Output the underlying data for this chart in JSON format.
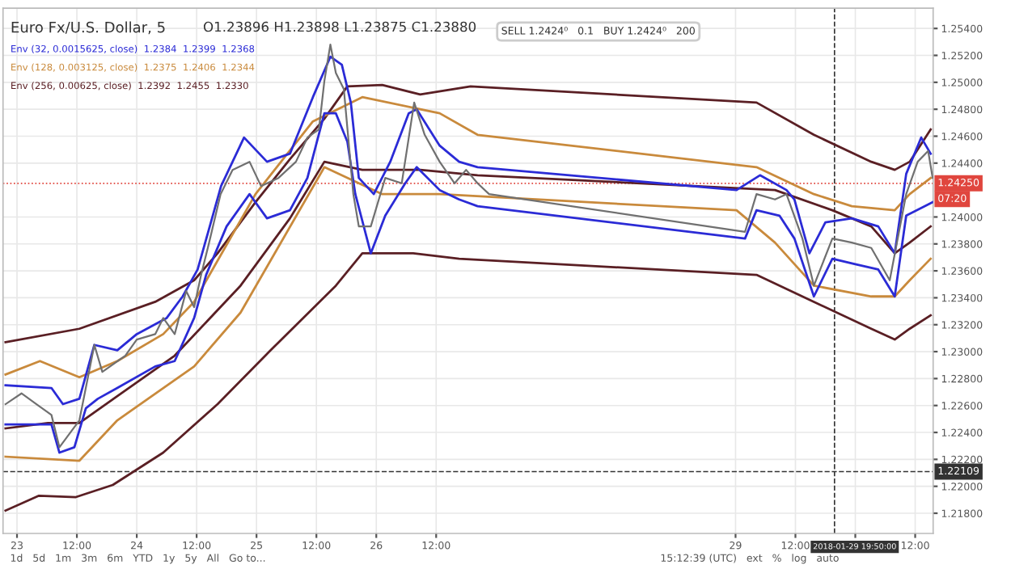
{
  "chart_data": {
    "type": "line",
    "title": "Euro Fx/U.S. Dollar, 5",
    "annotations": [
      "O1.23896 H1.23898 L1.23875 C1.23880",
      "Env (32, 0.0015625, close)  1.2384  1.2399  1.2368",
      "Env (128, 0.003125, close)  1.2375  1.2406  1.2344",
      "Env (256, 0.00625, close)  1.2392  1.2455  1.2330",
      "SELL 1.2424⁰   0.1   BUY 1.2424⁰   200",
      "1d   5d   1m   3m   6m   YTD   1y   5y   All   Go to...",
      "15:12:39 (UTC)   ext   %   log   auto",
      "07:20"
    ],
    "series": [
      {
        "color": "#5a1f24",
        "x": [
          "2018-01-22T21:42",
          "2018-01-23T12:30",
          "2018-01-24T03:42",
          "2018-01-24T11:30",
          "2018-01-24T16:12",
          "2018-01-24T23:48",
          "2018-01-25T06:42",
          "2018-01-25T13:36",
          "2018-01-25T18:12",
          "2018-01-26T01:12",
          "2018-01-26T08:48",
          "2018-01-26T18:54",
          "2018-01-29T04:12",
          "2018-01-29T15:42",
          "2018-01-30T03:12",
          "2018-01-30T07:54",
          "2018-01-30T10:54",
          "2018-01-30T15:06"
        ],
        "values": [
          1.2307,
          1.2317,
          1.2337,
          1.2353,
          1.2373,
          1.2411,
          1.2443,
          1.2473,
          1.2497,
          1.2498,
          1.2491,
          1.2497,
          1.2485,
          1.2461,
          1.2441,
          1.2435,
          1.2441,
          1.2465
        ]
      },
      {
        "color": "#5a1f24",
        "x": [
          "2018-01-22T21:42",
          "2018-01-23T06:12",
          "2018-01-23T12:30",
          "2018-01-23T20:06",
          "2018-01-24T07:36",
          "2018-01-24T20:48",
          "2018-01-25T06:42",
          "2018-01-25T13:36",
          "2018-01-25T21:12",
          "2018-01-26T08:48",
          "2018-01-26T20:18",
          "2018-01-29T07:54",
          "2018-01-29T19:24",
          "2018-01-30T03:12",
          "2018-01-30T07:54",
          "2018-01-30T10:54",
          "2018-01-30T15:06"
        ],
        "values": [
          1.2243,
          1.2247,
          1.2247,
          1.2267,
          1.2297,
          1.2349,
          1.2399,
          1.2441,
          1.2435,
          1.2435,
          1.2431,
          1.242,
          1.2405,
          1.2393,
          1.2373,
          1.2381,
          1.2393
        ]
      },
      {
        "color": "#5a1f24",
        "x": [
          "2018-01-22T21:42",
          "2018-01-23T04:24",
          "2018-01-23T11:48",
          "2018-01-23T19:12",
          "2018-01-24T05:18",
          "2018-01-24T16:12",
          "2018-01-25T02:48",
          "2018-01-25T15:54",
          "2018-01-25T21:12",
          "2018-01-26T07:24",
          "2018-01-26T16:36",
          "2018-01-29T04:12",
          "2018-01-29T15:42",
          "2018-01-30T03:12",
          "2018-01-30T07:54",
          "2018-01-30T10:54",
          "2018-01-30T15:06"
        ],
        "values": [
          1.2182,
          1.2193,
          1.2192,
          1.2201,
          1.2225,
          1.2261,
          1.2301,
          1.2349,
          1.2373,
          1.2373,
          1.2369,
          1.2357,
          1.2337,
          1.2317,
          1.2309,
          1.2317,
          1.2327
        ]
      },
      {
        "color": "#c98a3c",
        "x": [
          "2018-01-22T21:42",
          "2018-01-23T04:36",
          "2018-01-23T12:30",
          "2018-01-23T20:06",
          "2018-01-24T05:18",
          "2018-01-24T11:30",
          "2018-01-24T23:48",
          "2018-01-25T11:18",
          "2018-01-25T21:12",
          "2018-01-26T12:42",
          "2018-01-26T20:18",
          "2018-01-29T04:12",
          "2018-01-29T15:42",
          "2018-01-29T23:18",
          "2018-01-30T07:54",
          "2018-01-30T10:54",
          "2018-01-30T15:06"
        ],
        "values": [
          1.2283,
          1.2293,
          1.2281,
          1.2293,
          1.2313,
          1.2337,
          1.2417,
          1.2471,
          1.2489,
          1.2477,
          1.2461,
          1.2437,
          1.2417,
          1.2408,
          1.2405,
          1.2417,
          1.2429
        ]
      },
      {
        "color": "#c98a3c",
        "x": [
          "2018-01-22T21:42",
          "2018-01-23T12:30",
          "2018-01-23T20:06",
          "2018-01-24T11:30",
          "2018-01-24T20:48",
          "2018-01-25T13:36",
          "2018-01-26T01:12",
          "2018-01-26T12:42",
          "2018-01-29T00:12",
          "2018-01-29T07:54",
          "2018-01-29T15:42",
          "2018-01-30T03:12",
          "2018-01-30T07:54",
          "2018-01-30T10:54",
          "2018-01-30T15:06"
        ],
        "values": [
          1.2222,
          1.2219,
          1.2249,
          1.2289,
          1.2329,
          1.2437,
          1.2417,
          1.2417,
          1.2405,
          1.2381,
          1.2349,
          1.2341,
          1.2341,
          1.2353,
          1.2369
        ]
      },
      {
        "color": "#2b2bd6",
        "x": [
          "2018-01-22T21:42",
          "2018-01-23T06:54",
          "2018-01-23T09:12",
          "2018-01-23T12:30",
          "2018-01-23T15:30",
          "2018-01-23T20:06",
          "2018-01-24T00:00",
          "2018-01-24T06:00",
          "2018-01-24T09:12",
          "2018-01-24T12:12",
          "2018-01-24T16:54",
          "2018-01-24T21:30",
          "2018-01-25T02:06",
          "2018-01-25T06:42",
          "2018-01-25T11:18",
          "2018-01-25T14:48",
          "2018-01-25T17:06",
          "2018-01-25T18:54",
          "2018-01-25T20:30",
          "2018-01-25T23:30",
          "2018-01-26T02:48",
          "2018-01-26T06:30",
          "2018-01-26T08:06",
          "2018-01-26T12:42",
          "2018-01-26T16:36",
          "2018-01-26T20:18",
          "2018-01-29T00:12",
          "2018-01-29T04:54",
          "2018-01-29T10:12",
          "2018-01-29T11:48",
          "2018-01-29T14:48",
          "2018-01-29T18:00",
          "2018-01-29T23:18",
          "2018-01-30T04:36",
          "2018-01-30T07:54",
          "2018-01-30T10:12",
          "2018-01-30T13:12",
          "2018-01-30T15:06"
        ],
        "values": [
          1.2275,
          1.2273,
          1.2261,
          1.2265,
          1.2305,
          1.2301,
          1.2313,
          1.2325,
          1.2341,
          1.2361,
          1.2423,
          1.2459,
          1.2441,
          1.2447,
          1.2489,
          1.2519,
          1.2513,
          1.2485,
          1.2429,
          1.2417,
          1.2441,
          1.2477,
          1.248,
          1.2453,
          1.2441,
          1.2437,
          1.242,
          1.2431,
          1.242,
          1.2413,
          1.2373,
          1.2396,
          1.2399,
          1.2393,
          1.2373,
          1.2432,
          1.2459,
          1.2447
        ]
      },
      {
        "color": "#2b2bd6",
        "x": [
          "2018-01-22T21:42",
          "2018-01-23T06:54",
          "2018-01-23T08:30",
          "2018-01-23T11:30",
          "2018-01-23T13:48",
          "2018-01-23T16:12",
          "2018-01-23T20:06",
          "2018-01-24T03:42",
          "2018-01-24T07:36",
          "2018-01-24T11:30",
          "2018-01-24T13:54",
          "2018-01-24T18:00",
          "2018-01-24T22:36",
          "2018-01-25T02:06",
          "2018-01-25T06:42",
          "2018-01-25T10:12",
          "2018-01-25T13:36",
          "2018-01-25T15:54",
          "2018-01-25T18:12",
          "2018-01-25T19:48",
          "2018-01-25T22:54",
          "2018-01-26T01:48",
          "2018-01-26T05:48",
          "2018-01-26T08:06",
          "2018-01-26T12:42",
          "2018-01-26T16:36",
          "2018-01-26T20:18",
          "2018-01-29T01:54",
          "2018-01-29T04:12",
          "2018-01-29T08:48",
          "2018-01-29T11:48",
          "2018-01-29T15:42",
          "2018-01-29T19:24",
          "2018-01-30T00:00",
          "2018-01-30T04:36",
          "2018-01-30T07:54",
          "2018-01-30T10:12",
          "2018-01-30T15:30"
        ],
        "values": [
          1.2246,
          1.2246,
          1.2225,
          1.2229,
          1.2258,
          1.2265,
          1.2273,
          1.2289,
          1.2293,
          1.2325,
          1.2357,
          1.2393,
          1.2417,
          1.2399,
          1.2405,
          1.2429,
          1.2477,
          1.2477,
          1.2456,
          1.2417,
          1.2373,
          1.2401,
          1.2425,
          1.2437,
          1.242,
          1.2413,
          1.2408,
          1.2384,
          1.2405,
          1.2401,
          1.2384,
          1.2341,
          1.2369,
          1.2365,
          1.2361,
          1.2341,
          1.2401,
          1.2411
        ]
      },
      {
        "color": "#707070",
        "x": [
          "2018-01-22T21:42",
          "2018-01-23T00:54",
          "2018-01-23T03:54",
          "2018-01-23T06:54",
          "2018-01-23T08:30",
          "2018-01-23T12:30",
          "2018-01-23T15:30",
          "2018-01-23T17:06",
          "2018-01-23T21:42",
          "2018-01-24T00:00",
          "2018-01-24T03:42",
          "2018-01-24T05:18",
          "2018-01-24T07:36",
          "2018-01-24T09:54",
          "2018-01-24T11:30",
          "2018-01-24T12:54",
          "2018-01-24T14:30",
          "2018-01-24T16:48",
          "2018-01-24T19:12",
          "2018-01-24T22:36",
          "2018-01-25T00:54",
          "2018-01-25T04:24",
          "2018-01-25T07:54",
          "2018-01-25T10:12",
          "2018-01-25T12:30",
          "2018-01-25T13:36",
          "2018-01-25T14:48",
          "2018-01-25T15:54",
          "2018-01-25T17:30",
          "2018-01-25T19:24",
          "2018-01-25T20:30",
          "2018-01-25T22:54",
          "2018-01-26T01:48",
          "2018-01-26T05:06",
          "2018-01-26T07:36",
          "2018-01-26T09:42",
          "2018-01-26T12:42",
          "2018-01-26T15:42",
          "2018-01-26T18:00",
          "2018-01-26T20:18",
          "2018-01-26T22:36",
          "2018-01-29T01:54",
          "2018-01-29T04:12",
          "2018-01-29T07:54",
          "2018-01-29T10:12",
          "2018-01-29T13:24",
          "2018-01-29T15:42",
          "2018-01-29T19:24",
          "2018-01-29T23:18",
          "2018-01-30T03:12",
          "2018-01-30T06:54",
          "2018-01-30T10:12",
          "2018-01-30T12:30",
          "2018-01-30T14:36",
          "2018-01-30T15:30"
        ],
        "values": [
          1.2261,
          1.2269,
          1.2261,
          1.2253,
          1.2229,
          1.2249,
          1.2305,
          1.2285,
          1.2297,
          1.2309,
          1.2313,
          1.2325,
          1.2313,
          1.2345,
          1.2333,
          1.2357,
          1.2381,
          1.2417,
          1.2435,
          1.2441,
          1.2423,
          1.2429,
          1.2441,
          1.2459,
          1.2465,
          1.2501,
          1.2528,
          1.2507,
          1.2495,
          1.2417,
          1.2393,
          1.2393,
          1.2429,
          1.2425,
          1.2485,
          1.2461,
          1.2441,
          1.2425,
          1.2435,
          1.2425,
          1.2417,
          1.2389,
          1.2417,
          1.2413,
          1.2417,
          1.2384,
          1.2349,
          1.2384,
          1.2381,
          1.2377,
          1.2353,
          1.2417,
          1.2441,
          1.2449,
          1.2429
        ]
      }
    ],
    "xlim": [
      "2018-01-22T21:12",
      "2018-01-30T15:36"
    ],
    "xticks": [
      {
        "value": "2018-01-23",
        "label": "23"
      },
      {
        "value": "2018-01-23T12:00",
        "label": "12:00"
      },
      {
        "value": "2018-01-24",
        "label": "24"
      },
      {
        "value": "2018-01-24T12:00",
        "label": "12:00"
      },
      {
        "value": "2018-01-25",
        "label": "25"
      },
      {
        "value": "2018-01-25T12:00",
        "label": "12:00"
      },
      {
        "value": "2018-01-26",
        "label": "26"
      },
      {
        "value": "2018-01-26T12:00",
        "label": "12:00"
      },
      {
        "value": "2018-01-29",
        "label": "29"
      },
      {
        "value": "2018-01-29T12:00",
        "label": "12:00"
      },
      {
        "value": "2018-01-30",
        "label": null
      },
      {
        "value": "2018-01-30T12:00",
        "label": "12:00"
      }
    ],
    "ylim": [
      1.2165,
      1.2555
    ],
    "yticks": [
      {
        "value": 1.218,
        "label": "1.21800"
      },
      {
        "value": 1.22,
        "label": "1.22000"
      },
      {
        "value": 1.222,
        "label": "1.22200"
      },
      {
        "value": 1.224,
        "label": "1.22400"
      },
      {
        "value": 1.226,
        "label": "1.22600"
      },
      {
        "value": 1.228,
        "label": "1.22800"
      },
      {
        "value": 1.23,
        "label": "1.23000"
      },
      {
        "value": 1.232,
        "label": "1.23200"
      },
      {
        "value": 1.234,
        "label": "1.23400"
      },
      {
        "value": 1.236,
        "label": "1.23600"
      },
      {
        "value": 1.238,
        "label": "1.23800"
      },
      {
        "value": 1.24,
        "label": "1.24000"
      },
      {
        "value": 1.244,
        "label": "1.24400"
      },
      {
        "value": 1.246,
        "label": "1.24600"
      },
      {
        "value": 1.248,
        "label": "1.24800"
      },
      {
        "value": 1.25,
        "label": "1.25000"
      },
      {
        "value": 1.252,
        "label": "1.25200"
      },
      {
        "value": 1.254,
        "label": "1.25400"
      }
    ],
    "ref_lines": [
      {
        "axis": "y",
        "value": 1.2425,
        "label": "1.24250",
        "color": "#e0463e",
        "line_style": "dotted"
      },
      {
        "axis": "y",
        "value": 1.22109,
        "label": "1.22109",
        "color": "#333333",
        "line_style": "dashed"
      },
      {
        "axis": "x",
        "value": "2018-01-29T19:50",
        "label": "2018-01-29 19:50:00",
        "color": "#333333",
        "line_style": "dashed"
      }
    ],
    "grid": true,
    "legend": false,
    "line_style": "solid",
    "marker": "none"
  }
}
